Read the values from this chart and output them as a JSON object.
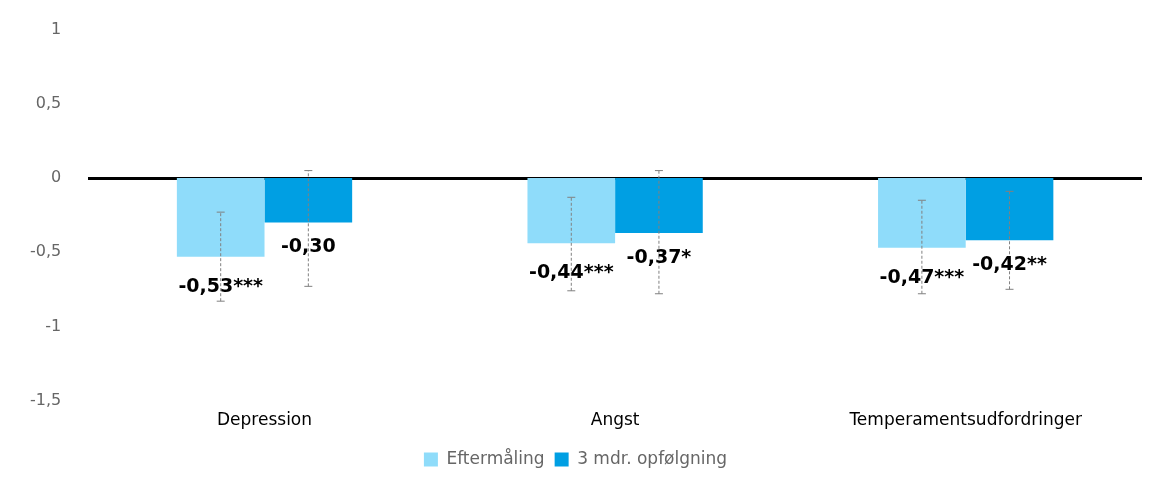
{
  "chart_data": {
    "type": "bar",
    "categories": [
      "Depression",
      "Angst",
      "Temperamentsudfordringer"
    ],
    "series": [
      {
        "name": "Eftermåling",
        "color": "#8fdcfa",
        "values": [
          -0.53,
          -0.44,
          -0.47
        ],
        "errors": [
          [
            -0.83,
            -0.23
          ],
          [
            -0.76,
            -0.13
          ],
          [
            -0.78,
            -0.15
          ]
        ],
        "value_labels": [
          "-0,53***",
          "-0,44***",
          "-0,47***"
        ]
      },
      {
        "name": "3 mdr. opfølgning",
        "color": "#009fe3",
        "values": [
          -0.3,
          -0.37,
          -0.42
        ],
        "errors": [
          [
            -0.73,
            0.05
          ],
          [
            -0.78,
            0.05
          ],
          [
            -0.75,
            -0.09
          ]
        ],
        "value_labels": [
          "-0,30",
          "-0,37*",
          "-0,42**"
        ]
      }
    ],
    "ylim": [
      -1.5,
      1
    ],
    "yticks": [
      {
        "value": -1.5,
        "label": "-1,5"
      },
      {
        "value": -1,
        "label": "-1"
      },
      {
        "value": -0.5,
        "label": "-0,5"
      },
      {
        "value": 0,
        "label": "0"
      },
      {
        "value": 0.5,
        "label": "0,5"
      },
      {
        "value": 1,
        "label": "1"
      }
    ],
    "legend": "bottom"
  }
}
